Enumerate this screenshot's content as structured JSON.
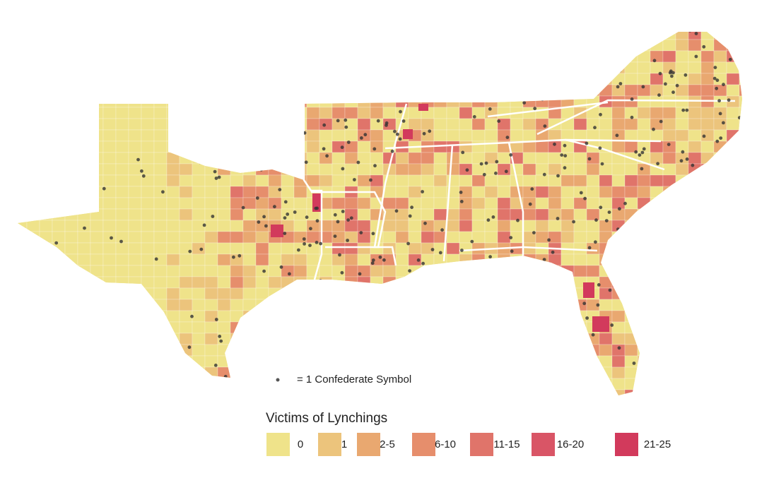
{
  "symbol_note": "= 1 Confederate Symbol",
  "legend": {
    "title": "Victims of Lynchings",
    "items": [
      {
        "label": "0",
        "color": "#efe38a"
      },
      {
        "label": "1",
        "color": "#ecc47c"
      },
      {
        "label": "2-5",
        "color": "#e9a870"
      },
      {
        "label": "6-10",
        "color": "#e68e6c"
      },
      {
        "label": "11-15",
        "color": "#e0746a"
      },
      {
        "label": "16-20",
        "color": "#d95566"
      },
      {
        "label": "21-25",
        "color": "#d23a5c"
      }
    ]
  }
}
